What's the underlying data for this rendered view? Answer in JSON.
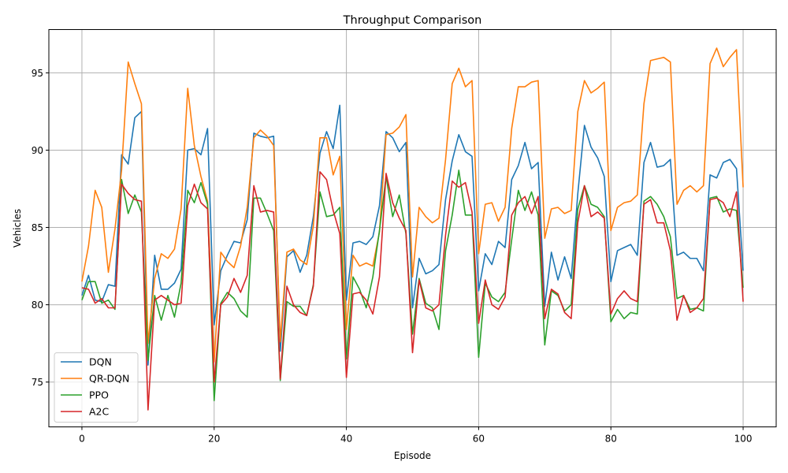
{
  "chart_data": {
    "type": "line",
    "title": "Throughput Comparison",
    "xlabel": "Episode",
    "ylabel": "Vehicles",
    "xlim": [
      -5,
      105
    ],
    "ylim": [
      72.1,
      97.8
    ],
    "xticks": [
      0,
      20,
      40,
      60,
      80,
      100
    ],
    "yticks": [
      75,
      80,
      85,
      90,
      95
    ],
    "grid": true,
    "legend_position": "lower-left",
    "x": [
      0,
      1,
      2,
      3,
      4,
      5,
      6,
      7,
      8,
      9,
      10,
      11,
      12,
      13,
      14,
      15,
      16,
      17,
      18,
      19,
      20,
      21,
      22,
      23,
      24,
      25,
      26,
      27,
      28,
      29,
      30,
      31,
      32,
      33,
      34,
      35,
      36,
      37,
      38,
      39,
      40,
      41,
      42,
      43,
      44,
      45,
      46,
      47,
      48,
      49,
      50,
      51,
      52,
      53,
      54,
      55,
      56,
      57,
      58,
      59,
      60,
      61,
      62,
      63,
      64,
      65,
      66,
      67,
      68,
      69,
      70,
      71,
      72,
      73,
      74,
      75,
      76,
      77,
      78,
      79,
      80,
      81,
      82,
      83,
      84,
      85,
      86,
      87,
      88,
      89,
      90,
      91,
      92,
      93,
      94,
      95,
      96,
      97,
      98,
      99,
      100
    ],
    "series": [
      {
        "name": "DQN",
        "color": "#1f77b4",
        "values": [
          80.6,
          81.9,
          80.3,
          80.2,
          81.3,
          81.2,
          89.7,
          89.1,
          92.1,
          92.5,
          76.1,
          83.2,
          81.0,
          81.0,
          81.4,
          82.3,
          90.0,
          90.1,
          89.7,
          91.4,
          78.7,
          82.2,
          83.2,
          84.1,
          84.0,
          85.5,
          91.1,
          90.9,
          90.8,
          90.9,
          77.0,
          83.1,
          83.5,
          82.1,
          83.2,
          85.7,
          89.8,
          91.2,
          90.1,
          92.9,
          80.3,
          84.0,
          84.1,
          83.9,
          84.4,
          86.4,
          91.2,
          90.8,
          89.9,
          90.5,
          79.8,
          83.0,
          82.0,
          82.2,
          82.6,
          86.8,
          89.3,
          91.0,
          89.9,
          89.6,
          80.9,
          83.3,
          82.6,
          84.1,
          83.7,
          88.1,
          89.0,
          90.5,
          88.8,
          89.2,
          79.9,
          83.4,
          81.6,
          83.1,
          81.7,
          87.2,
          91.6,
          90.2,
          89.5,
          88.3,
          81.5,
          83.5,
          83.7,
          83.9,
          83.2,
          89.2,
          90.5,
          88.9,
          89.0,
          89.4,
          83.2,
          83.4,
          83.0,
          83.0,
          82.2,
          88.4,
          88.2,
          89.2,
          89.4,
          88.8,
          82.2
        ]
      },
      {
        "name": "QR-DQN",
        "color": "#ff7f0e",
        "values": [
          81.5,
          83.8,
          87.4,
          86.3,
          82.1,
          84.9,
          88.7,
          95.7,
          94.3,
          93.0,
          77.5,
          81.7,
          83.3,
          83.0,
          83.6,
          86.2,
          94.0,
          90.3,
          88.3,
          86.7,
          76.3,
          83.4,
          82.8,
          82.4,
          83.8,
          86.3,
          90.8,
          91.3,
          90.9,
          90.3,
          77.6,
          83.4,
          83.6,
          82.9,
          82.6,
          85.1,
          90.8,
          90.8,
          88.4,
          89.6,
          78.4,
          83.2,
          82.5,
          82.7,
          82.5,
          84.7,
          91.0,
          91.1,
          91.5,
          92.3,
          81.8,
          86.3,
          85.7,
          85.3,
          85.6,
          89.4,
          94.3,
          95.3,
          94.1,
          94.5,
          83.3,
          86.5,
          86.6,
          85.4,
          86.3,
          91.4,
          94.1,
          94.1,
          94.4,
          94.5,
          84.3,
          86.2,
          86.3,
          85.9,
          86.1,
          92.5,
          94.5,
          93.7,
          94.0,
          94.4,
          84.8,
          86.3,
          86.6,
          86.7,
          87.1,
          93.0,
          95.8,
          95.9,
          96.0,
          95.7,
          86.5,
          87.4,
          87.7,
          87.3,
          87.7,
          95.6,
          96.6,
          95.4,
          96.0,
          96.5,
          87.6
        ]
      },
      {
        "name": "PPO",
        "color": "#2ca02c",
        "values": [
          80.3,
          81.5,
          81.5,
          80.1,
          80.3,
          79.7,
          88.1,
          85.9,
          87.1,
          86.0,
          76.4,
          80.6,
          79.0,
          80.6,
          79.2,
          81.4,
          87.4,
          86.6,
          87.9,
          86.5,
          73.8,
          80.1,
          80.8,
          80.4,
          79.6,
          79.2,
          86.9,
          86.9,
          85.9,
          84.8,
          75.1,
          80.2,
          79.9,
          79.9,
          79.3,
          81.3,
          87.3,
          85.7,
          85.8,
          86.3,
          76.5,
          81.8,
          81.0,
          79.8,
          81.8,
          84.8,
          88.3,
          85.7,
          87.1,
          84.6,
          78.1,
          81.7,
          80.1,
          79.8,
          78.4,
          83.5,
          85.8,
          88.7,
          85.8,
          85.8,
          76.6,
          81.4,
          80.5,
          80.2,
          80.8,
          84.2,
          87.4,
          86.1,
          87.3,
          85.8,
          77.4,
          80.9,
          80.6,
          79.6,
          80.0,
          86.2,
          87.7,
          86.5,
          86.3,
          85.7,
          78.9,
          79.7,
          79.1,
          79.5,
          79.4,
          86.7,
          87.0,
          86.5,
          85.7,
          84.4,
          80.4,
          80.6,
          79.7,
          79.8,
          79.6,
          86.9,
          87.0,
          86.0,
          86.2,
          86.1,
          81.1
        ]
      },
      {
        "name": "A2C",
        "color": "#d62728",
        "values": [
          81.1,
          81.0,
          80.1,
          80.4,
          79.8,
          79.8,
          87.8,
          87.2,
          86.8,
          86.7,
          73.2,
          80.3,
          80.6,
          80.3,
          80.0,
          80.1,
          86.4,
          87.8,
          86.6,
          86.2,
          75.0,
          80.0,
          80.5,
          81.7,
          80.8,
          81.9,
          87.7,
          86.0,
          86.1,
          86.0,
          75.2,
          81.2,
          80.0,
          79.5,
          79.3,
          81.2,
          88.6,
          88.1,
          86.1,
          84.6,
          75.3,
          80.7,
          80.8,
          80.3,
          79.4,
          81.8,
          88.5,
          86.6,
          85.6,
          84.8,
          76.9,
          81.6,
          79.8,
          79.6,
          80.0,
          84.5,
          88.0,
          87.6,
          87.9,
          86.0,
          78.8,
          81.6,
          80.0,
          79.7,
          80.5,
          85.8,
          86.6,
          87.0,
          85.9,
          87.0,
          79.1,
          81.0,
          80.7,
          79.5,
          79.1,
          85.3,
          87.7,
          85.7,
          86.0,
          85.6,
          79.4,
          80.4,
          80.9,
          80.4,
          80.2,
          86.5,
          86.8,
          85.3,
          85.3,
          83.5,
          79.0,
          80.6,
          79.5,
          79.8,
          80.4,
          86.8,
          86.9,
          86.6,
          85.7,
          87.3,
          80.2
        ]
      }
    ]
  }
}
